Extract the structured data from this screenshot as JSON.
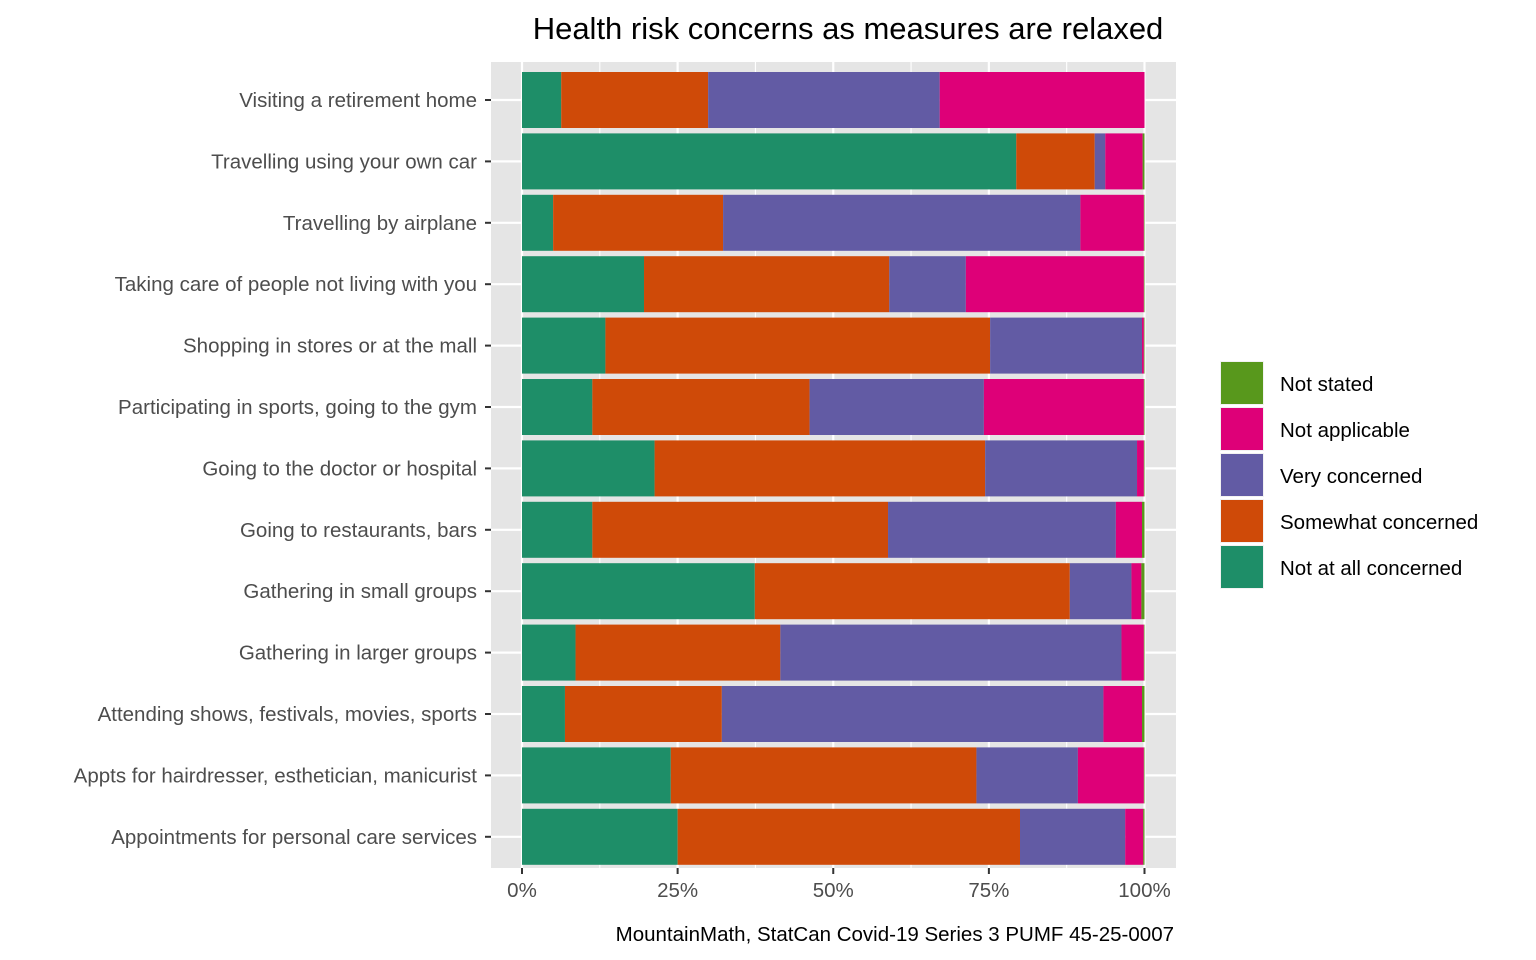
{
  "chart_data": {
    "type": "bar",
    "orientation": "horizontal",
    "stacked": "fill",
    "title": "Health risk concerns as measures are relaxed",
    "xlabel": "",
    "ylabel": "",
    "caption": "MountainMath, StatCan Covid-19 Series 3 PUMF 45-25-0007",
    "xlim": [
      0,
      100
    ],
    "x_ticks": [
      0,
      25,
      50,
      75,
      100
    ],
    "x_tick_labels": [
      "0%",
      "25%",
      "50%",
      "75%",
      "100%"
    ],
    "grid": true,
    "legend_position": "right",
    "categories": [
      "Visiting a retirement home",
      "Travelling using your own car",
      "Travelling by airplane",
      "Taking care of people not living with you",
      "Shopping in stores or at the mall",
      "Participating in sports, going to the gym",
      "Going to the doctor or hospital",
      "Going to restaurants, bars",
      "Gathering in small groups",
      "Gathering in larger groups",
      "Attending shows, festivals, movies, sports",
      "Appts for hairdresser, esthetician, manicurist",
      "Appointments for personal care services"
    ],
    "series": [
      {
        "name": "Not at all concerned",
        "color": "#1b9e77",
        "values": [
          6.3,
          79.4,
          5.0,
          19.6,
          13.4,
          11.3,
          21.3,
          11.3,
          37.4,
          8.6,
          6.9,
          23.9,
          25.0
        ]
      },
      {
        "name": "Somewhat concerned",
        "color": "#d95f02",
        "values": [
          23.6,
          12.6,
          27.3,
          39.4,
          61.8,
          34.9,
          53.1,
          47.5,
          50.6,
          32.9,
          25.2,
          49.1,
          55.0
        ]
      },
      {
        "name": "Very concerned",
        "color": "#7570b3",
        "values": [
          37.2,
          1.7,
          57.4,
          12.3,
          24.4,
          28.0,
          24.4,
          36.6,
          9.9,
          54.8,
          61.3,
          16.3,
          16.9
        ]
      },
      {
        "name": "Not applicable",
        "color": "#e7298a",
        "values": [
          32.9,
          6.0,
          10.2,
          28.6,
          0.3,
          25.7,
          1.1,
          4.2,
          1.6,
          3.6,
          6.2,
          10.6,
          2.9
        ]
      },
      {
        "name": "Not stated",
        "color": "#66a61e",
        "values": [
          0.0,
          0.3,
          0.1,
          0.1,
          0.1,
          0.1,
          0.1,
          0.4,
          0.5,
          0.1,
          0.4,
          0.1,
          0.2
        ]
      }
    ],
    "legend_order": [
      "Not stated",
      "Not applicable",
      "Very concerned",
      "Somewhat concerned",
      "Not at all concerned"
    ]
  },
  "render_colors": {
    "Not at all concerned": "#1e8e68",
    "Somewhat concerned": "#cf4a08",
    "Very concerned": "#625ba4",
    "Not applicable": "#de0078",
    "Not stated": "#58981c",
    "panel": "#e5e5e5",
    "grid": "#ffffff"
  }
}
